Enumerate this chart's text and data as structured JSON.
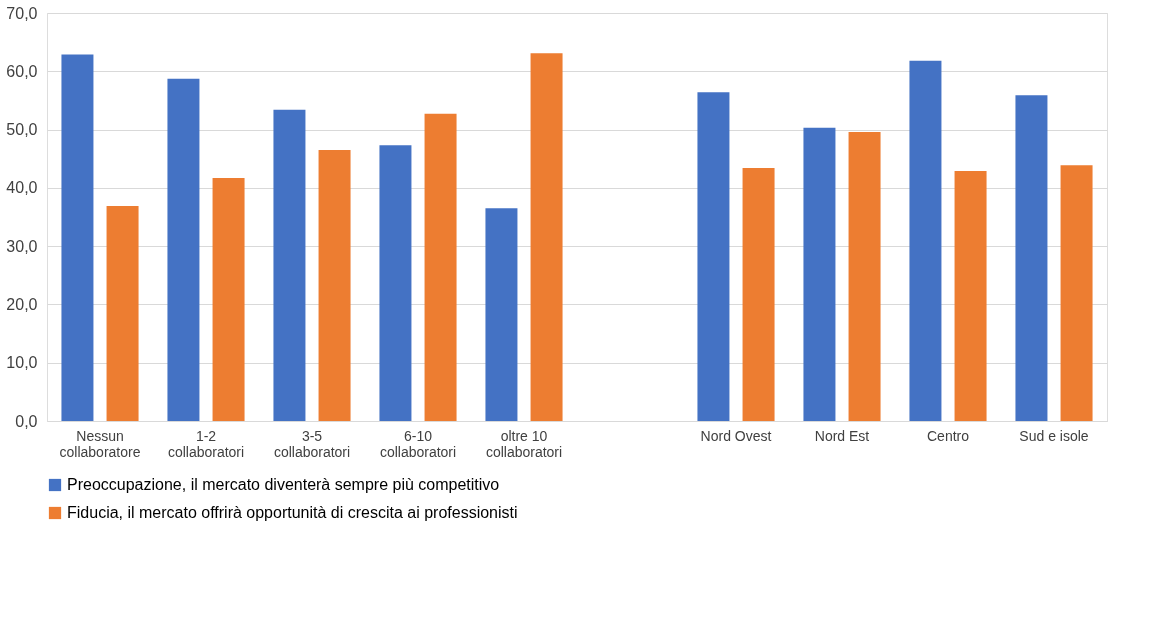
{
  "chart_data": {
    "type": "bar",
    "categories": [
      "Nessun\ncollaboratore",
      "1-2\ncollaboratori",
      "3-5\ncollaboratori",
      "6-10\ncollaboratori",
      "oltre 10\ncollaboratori",
      null,
      "Nord Ovest",
      "Nord Est",
      "Centro",
      "Sud e isole"
    ],
    "series": [
      {
        "name": "Preoccupazione, il mercato diventerà sempre più competitivo",
        "color": "#4472c4",
        "values": [
          62.9,
          58.7,
          53.4,
          47.3,
          36.5,
          null,
          56.4,
          50.3,
          61.8,
          55.9
        ]
      },
      {
        "name": "Fiducia, il mercato offrirà opportunità di crescita ai professionisti",
        "color": "#ed7d31",
        "values": [
          36.9,
          41.7,
          46.5,
          52.7,
          63.1,
          null,
          43.4,
          49.6,
          42.9,
          43.9
        ]
      }
    ],
    "ylim": [
      0,
      70
    ],
    "yticks": [
      {
        "value": 0,
        "label": "0,0"
      },
      {
        "value": 10,
        "label": "10,0"
      },
      {
        "value": 20,
        "label": "20,0"
      },
      {
        "value": 30,
        "label": "30,0"
      },
      {
        "value": 40,
        "label": "40,0"
      },
      {
        "value": 50,
        "label": "50,0"
      },
      {
        "value": 60,
        "label": "60,0"
      },
      {
        "value": 70,
        "label": "70,0"
      }
    ],
    "grid": "y",
    "legend": "bottom"
  }
}
